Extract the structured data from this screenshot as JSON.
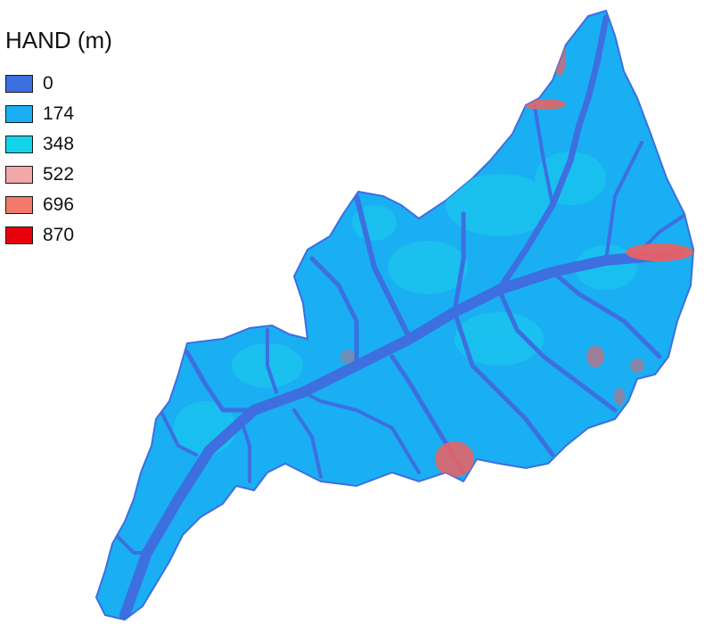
{
  "legend": {
    "title": "HAND (m)",
    "items": [
      {
        "label": "0",
        "color": "#3d6fe0"
      },
      {
        "label": "174",
        "color": "#1aaef2"
      },
      {
        "label": "348",
        "color": "#13d3ea"
      },
      {
        "label": "522",
        "color": "#f0a8a8"
      },
      {
        "label": "696",
        "color": "#f27a6a"
      },
      {
        "label": "870",
        "color": "#e8000c"
      }
    ]
  },
  "map": {
    "basin_fill": "#1aaef2",
    "channel_color": "#3d6fe0",
    "ridge_color": "#1ad0ec",
    "high_color": "#f06060"
  }
}
